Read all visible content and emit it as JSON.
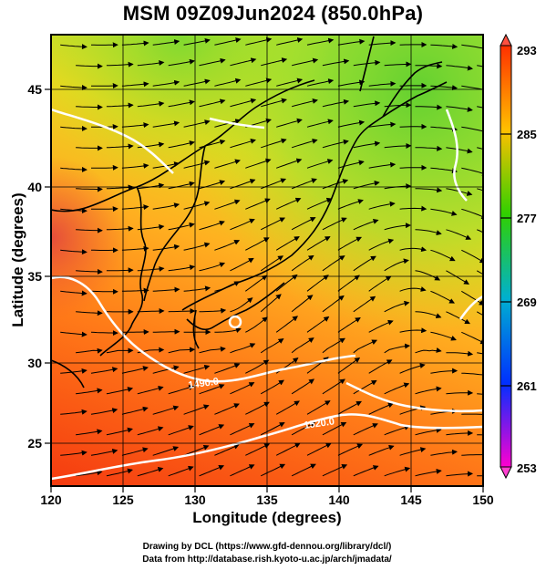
{
  "title": "MSM 09Z09Jun2024 (850.0hPa)",
  "xlabel": "Longitude (degrees)",
  "ylabel": "Latitude  (degrees)",
  "map": {
    "lon_range": [
      120,
      150
    ],
    "lat_range": [
      22.5,
      48
    ],
    "lon_ticks": [
      "120",
      "125",
      "130",
      "135",
      "140",
      "145",
      "150"
    ],
    "lat_ticks": [
      "25",
      "30",
      "35",
      "40",
      "45"
    ],
    "contour_labels": [
      "1490.0",
      "1520.0"
    ],
    "field": "temperature",
    "overlay": "wind streamlines"
  },
  "colorbar": {
    "ticks": [
      "293",
      "285",
      "277",
      "269",
      "261",
      "253"
    ],
    "colors": {
      "293": "#ff3000",
      "285": "#ffc000",
      "277": "#30d000",
      "269": "#00b0d0",
      "261": "#0030ff",
      "253": "#ff00d0"
    }
  },
  "credits": {
    "line1": "Drawing by DCL (https://www.gfd-dennou.org/library/dcl/)",
    "line2": "Data from http://database.rish.kyoto-u.ac.jp/arch/jmadata/"
  }
}
